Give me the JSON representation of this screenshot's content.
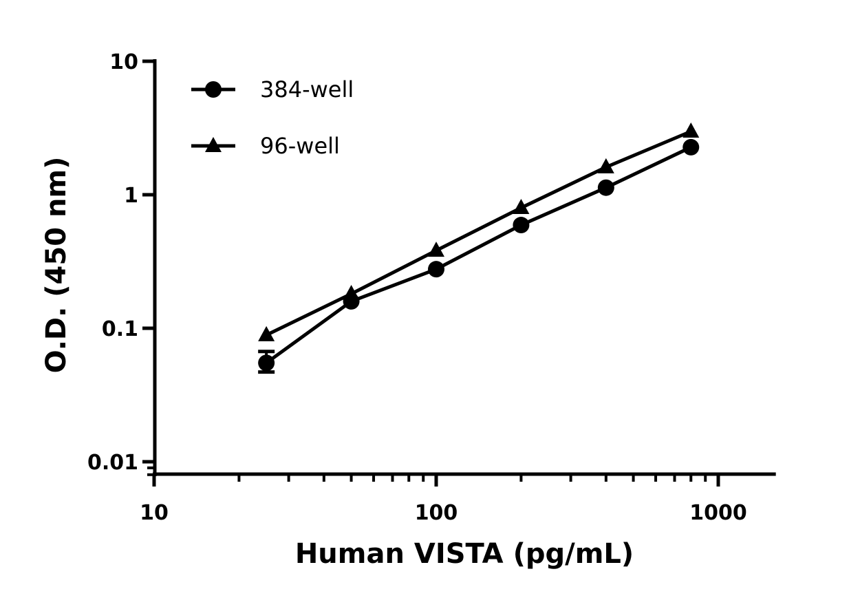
{
  "chart_data": {
    "type": "line",
    "title": "",
    "xlabel": "Human VISTA (pg/mL)",
    "ylabel": "O.D. (450 nm)",
    "xscale": "log",
    "yscale": "log",
    "xlim": [
      10,
      1600
    ],
    "ylim": [
      0.008,
      10
    ],
    "xticks": [
      10,
      100,
      1000
    ],
    "xtick_labels": [
      "10",
      "100",
      "1000"
    ],
    "yticks": [
      0.01,
      0.1,
      1,
      10
    ],
    "ytick_labels": [
      "0.01",
      "0.1",
      "1",
      "10"
    ],
    "grid": false,
    "legend_position": "top-left",
    "color": "#000000",
    "x": [
      25,
      50,
      100,
      200,
      400,
      800
    ],
    "series": [
      {
        "name": "384-well",
        "marker": "circle",
        "values": [
          0.055,
          0.159,
          0.277,
          0.593,
          1.13,
          2.27
        ],
        "error_low": [
          0.047,
          null,
          null,
          null,
          null,
          null
        ],
        "error_high": [
          0.067,
          null,
          null,
          null,
          null,
          null
        ]
      },
      {
        "name": "96-well",
        "marker": "triangle",
        "values": [
          0.089,
          0.181,
          0.382,
          0.798,
          1.61,
          2.98
        ]
      }
    ]
  }
}
